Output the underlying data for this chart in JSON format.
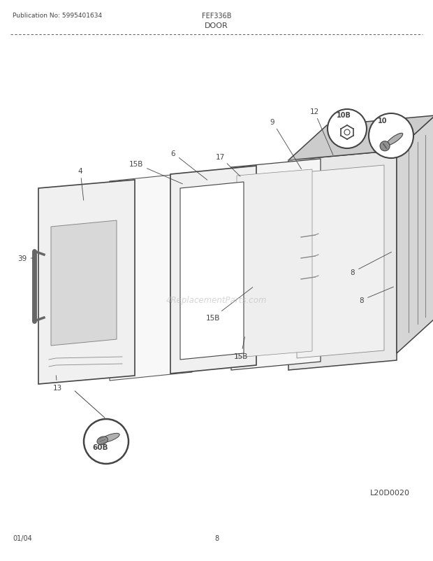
{
  "title_left": "Publication No: 5995401634",
  "title_center": "FEF336B",
  "title_sub": "DOOR",
  "footer_left": "01/04",
  "footer_center": "8",
  "diagram_id": "L20D0020",
  "bg_color": "#ffffff",
  "lc": "#444444",
  "mgray": "#888888",
  "lgray": "#bbbbbb",
  "panel_fill": "#f2f2f2",
  "panel_fill2": "#e8e8e8",
  "watermark": "4ReplacementParts.com"
}
